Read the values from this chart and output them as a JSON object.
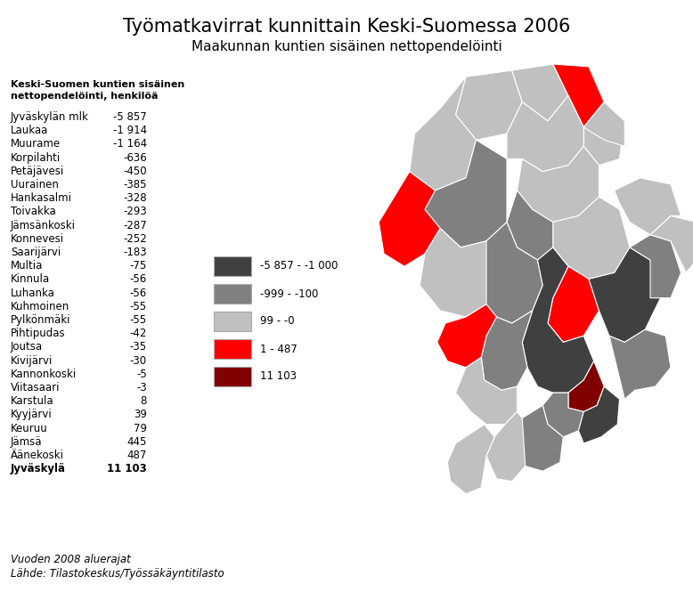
{
  "title": "Työmatkavirrat kunnittain Keski-Suomessa 2006",
  "subtitle": "Maakunnan kuntien sisäinen nettopendelöinti",
  "legend_title": "Keski-Suomen kuntien sisäinen\nnettopendelöinti, henkilöä",
  "footer1": "Vuoden 2008 aluerajat",
  "footer2": "Lähde: Tilastokeskus/Työssäkäyntitilasto",
  "municipalities": [
    [
      "Jyväskylän mlk",
      "-5 857"
    ],
    [
      "Laukaa",
      "-1 914"
    ],
    [
      "Muurame",
      "-1 164"
    ],
    [
      "Korpilahti",
      "-636"
    ],
    [
      "Petäjävesi",
      "-450"
    ],
    [
      "Uurainen",
      "-385"
    ],
    [
      "Hankasalmi",
      "-328"
    ],
    [
      "Toivakka",
      "-293"
    ],
    [
      "Jämsänkoski",
      "-287"
    ],
    [
      "Konnevesi",
      "-252"
    ],
    [
      "Saarijärvi",
      "-183"
    ],
    [
      "Multia",
      "-75"
    ],
    [
      "Kinnula",
      "-56"
    ],
    [
      "Luhanka",
      "-56"
    ],
    [
      "Kuhmoinen",
      "-55"
    ],
    [
      "Pylkönmäki",
      "-55"
    ],
    [
      "Pihtipudas",
      "-42"
    ],
    [
      "Joutsa",
      "-35"
    ],
    [
      "Kivijärvi",
      "-30"
    ],
    [
      "Kannonkoski",
      "-5"
    ],
    [
      "Viitasaari",
      "-3"
    ],
    [
      "Karstula",
      "8"
    ],
    [
      "Kyyjärvi",
      "39"
    ],
    [
      "Keuruu",
      "79"
    ],
    [
      "Jämsä",
      "445"
    ],
    [
      "Äänekoski",
      "487"
    ],
    [
      "Jyväskylä",
      "11 103"
    ]
  ],
  "legend_items": [
    {
      "color": "#404040",
      "label": "-5 857 - -1 000"
    },
    {
      "color": "#808080",
      "label": "-999 - -100"
    },
    {
      "color": "#c0c0c0",
      "label": "99 - -0"
    },
    {
      "color": "#ff0000",
      "label": "1 - 487"
    },
    {
      "color": "#800000",
      "label": "11 103"
    }
  ],
  "background_color": "#ffffff",
  "title_fontsize": 15,
  "subtitle_fontsize": 11,
  "text_fontsize": 8.5,
  "legend_title_fontsize": 8,
  "footer_fontsize": 8.5,
  "map_polys": [
    [
      "#c0c0c0",
      [
        [
          100,
          10
        ],
        [
          145,
          5
        ],
        [
          155,
          30
        ],
        [
          140,
          55
        ],
        [
          110,
          60
        ],
        [
          90,
          40
        ]
      ]
    ],
    [
      "#c0c0c0",
      [
        [
          145,
          5
        ],
        [
          185,
          0
        ],
        [
          200,
          25
        ],
        [
          180,
          45
        ],
        [
          155,
          30
        ]
      ]
    ],
    [
      "#ff0000",
      [
        [
          185,
          0
        ],
        [
          220,
          2
        ],
        [
          235,
          30
        ],
        [
          215,
          50
        ],
        [
          200,
          25
        ]
      ]
    ],
    [
      "#c0c0c0",
      [
        [
          100,
          10
        ],
        [
          90,
          40
        ],
        [
          110,
          60
        ],
        [
          100,
          90
        ],
        [
          70,
          100
        ],
        [
          45,
          85
        ],
        [
          50,
          55
        ],
        [
          75,
          35
        ]
      ]
    ],
    [
      "#c0c0c0",
      [
        [
          215,
          50
        ],
        [
          235,
          30
        ],
        [
          255,
          45
        ],
        [
          250,
          75
        ],
        [
          230,
          80
        ],
        [
          215,
          65
        ]
      ]
    ],
    [
      "#c0c0c0",
      [
        [
          140,
          55
        ],
        [
          155,
          30
        ],
        [
          180,
          45
        ],
        [
          200,
          25
        ],
        [
          215,
          50
        ],
        [
          215,
          65
        ],
        [
          200,
          80
        ],
        [
          175,
          85
        ],
        [
          155,
          75
        ],
        [
          140,
          75
        ]
      ]
    ],
    [
      "#c0c0c0",
      [
        [
          155,
          75
        ],
        [
          175,
          85
        ],
        [
          200,
          80
        ],
        [
          215,
          65
        ],
        [
          230,
          80
        ],
        [
          230,
          105
        ],
        [
          210,
          120
        ],
        [
          185,
          125
        ],
        [
          165,
          115
        ],
        [
          150,
          100
        ]
      ]
    ],
    [
      "#c0c0c0",
      [
        [
          185,
          125
        ],
        [
          210,
          120
        ],
        [
          230,
          105
        ],
        [
          250,
          115
        ],
        [
          260,
          145
        ],
        [
          245,
          165
        ],
        [
          220,
          170
        ],
        [
          200,
          160
        ],
        [
          185,
          145
        ]
      ]
    ],
    [
      "#808080",
      [
        [
          150,
          100
        ],
        [
          165,
          115
        ],
        [
          185,
          125
        ],
        [
          185,
          145
        ],
        [
          170,
          155
        ],
        [
          150,
          145
        ],
        [
          140,
          125
        ]
      ]
    ],
    [
      "#808080",
      [
        [
          70,
          100
        ],
        [
          100,
          90
        ],
        [
          110,
          60
        ],
        [
          140,
          75
        ],
        [
          140,
          125
        ],
        [
          120,
          140
        ],
        [
          95,
          145
        ],
        [
          75,
          130
        ],
        [
          60,
          115
        ]
      ]
    ],
    [
      "#ff0000",
      [
        [
          200,
          160
        ],
        [
          220,
          170
        ],
        [
          230,
          195
        ],
        [
          215,
          215
        ],
        [
          195,
          220
        ],
        [
          180,
          205
        ],
        [
          185,
          185
        ]
      ]
    ],
    [
      "#ff0000",
      [
        [
          45,
          85
        ],
        [
          70,
          100
        ],
        [
          60,
          115
        ],
        [
          75,
          130
        ],
        [
          60,
          150
        ],
        [
          40,
          160
        ],
        [
          20,
          150
        ],
        [
          15,
          125
        ],
        [
          30,
          105
        ]
      ]
    ],
    [
      "#c0c0c0",
      [
        [
          75,
          130
        ],
        [
          95,
          145
        ],
        [
          120,
          140
        ],
        [
          130,
          165
        ],
        [
          120,
          190
        ],
        [
          100,
          200
        ],
        [
          75,
          195
        ],
        [
          55,
          175
        ],
        [
          60,
          150
        ]
      ]
    ],
    [
      "#808080",
      [
        [
          120,
          140
        ],
        [
          140,
          125
        ],
        [
          150,
          145
        ],
        [
          170,
          155
        ],
        [
          175,
          175
        ],
        [
          165,
          195
        ],
        [
          145,
          205
        ],
        [
          130,
          200
        ],
        [
          120,
          190
        ]
      ]
    ],
    [
      "#404040",
      [
        [
          170,
          155
        ],
        [
          185,
          145
        ],
        [
          200,
          160
        ],
        [
          185,
          185
        ],
        [
          180,
          205
        ],
        [
          195,
          220
        ],
        [
          215,
          215
        ],
        [
          225,
          235
        ],
        [
          215,
          250
        ],
        [
          200,
          260
        ],
        [
          185,
          260
        ],
        [
          170,
          255
        ],
        [
          160,
          240
        ],
        [
          155,
          220
        ],
        [
          165,
          195
        ],
        [
          175,
          175
        ]
      ]
    ],
    [
      "#800000",
      [
        [
          200,
          260
        ],
        [
          215,
          250
        ],
        [
          225,
          235
        ],
        [
          235,
          255
        ],
        [
          228,
          270
        ],
        [
          215,
          275
        ],
        [
          200,
          272
        ]
      ]
    ],
    [
      "#404040",
      [
        [
          245,
          165
        ],
        [
          260,
          145
        ],
        [
          280,
          155
        ],
        [
          290,
          185
        ],
        [
          275,
          210
        ],
        [
          255,
          220
        ],
        [
          240,
          215
        ],
        [
          230,
          195
        ],
        [
          220,
          170
        ],
        [
          245,
          165
        ]
      ]
    ],
    [
      "#808080",
      [
        [
          185,
          260
        ],
        [
          200,
          260
        ],
        [
          200,
          272
        ],
        [
          215,
          275
        ],
        [
          210,
          290
        ],
        [
          195,
          295
        ],
        [
          180,
          285
        ],
        [
          175,
          270
        ]
      ]
    ],
    [
      "#404040",
      [
        [
          215,
          275
        ],
        [
          228,
          270
        ],
        [
          235,
          255
        ],
        [
          250,
          265
        ],
        [
          248,
          285
        ],
        [
          232,
          295
        ],
        [
          215,
          300
        ],
        [
          210,
          290
        ]
      ]
    ],
    [
      "#808080",
      [
        [
          130,
          200
        ],
        [
          145,
          205
        ],
        [
          165,
          195
        ],
        [
          155,
          220
        ],
        [
          160,
          240
        ],
        [
          150,
          255
        ],
        [
          135,
          258
        ],
        [
          118,
          250
        ],
        [
          115,
          232
        ],
        [
          120,
          215
        ]
      ]
    ],
    [
      "#808080",
      [
        [
          175,
          270
        ],
        [
          180,
          285
        ],
        [
          195,
          295
        ],
        [
          192,
          315
        ],
        [
          175,
          322
        ],
        [
          158,
          318
        ],
        [
          150,
          300
        ],
        [
          155,
          280
        ]
      ]
    ],
    [
      "#ff0000",
      [
        [
          100,
          200
        ],
        [
          120,
          190
        ],
        [
          130,
          200
        ],
        [
          120,
          215
        ],
        [
          115,
          232
        ],
        [
          100,
          240
        ],
        [
          82,
          235
        ],
        [
          72,
          220
        ],
        [
          80,
          205
        ]
      ]
    ],
    [
      "#c0c0c0",
      [
        [
          100,
          240
        ],
        [
          115,
          232
        ],
        [
          118,
          250
        ],
        [
          135,
          258
        ],
        [
          150,
          255
        ],
        [
          150,
          275
        ],
        [
          138,
          285
        ],
        [
          120,
          285
        ],
        [
          105,
          275
        ],
        [
          90,
          260
        ]
      ]
    ],
    [
      "#c0c0c0",
      [
        [
          138,
          285
        ],
        [
          150,
          275
        ],
        [
          155,
          280
        ],
        [
          158,
          318
        ],
        [
          145,
          330
        ],
        [
          130,
          328
        ],
        [
          120,
          310
        ],
        [
          128,
          295
        ]
      ]
    ],
    [
      "#c0c0c0",
      [
        [
          118,
          285
        ],
        [
          128,
          295
        ],
        [
          120,
          310
        ],
        [
          115,
          335
        ],
        [
          100,
          340
        ],
        [
          85,
          330
        ],
        [
          82,
          315
        ],
        [
          90,
          300
        ]
      ]
    ],
    [
      "#808080",
      [
        [
          255,
          220
        ],
        [
          275,
          210
        ],
        [
          295,
          215
        ],
        [
          300,
          240
        ],
        [
          285,
          255
        ],
        [
          265,
          258
        ],
        [
          255,
          265
        ],
        [
          240,
          215
        ]
      ]
    ],
    [
      "#808080",
      [
        [
          260,
          145
        ],
        [
          280,
          135
        ],
        [
          300,
          140
        ],
        [
          310,
          165
        ],
        [
          300,
          185
        ],
        [
          280,
          185
        ],
        [
          280,
          155
        ]
      ]
    ],
    [
      "#c0c0c0",
      [
        [
          280,
          135
        ],
        [
          300,
          120
        ],
        [
          325,
          125
        ],
        [
          330,
          150
        ],
        [
          315,
          165
        ],
        [
          300,
          140
        ]
      ]
    ],
    [
      "#c0c0c0",
      [
        [
          245,
          100
        ],
        [
          270,
          90
        ],
        [
          300,
          95
        ],
        [
          310,
          120
        ],
        [
          300,
          120
        ],
        [
          280,
          135
        ],
        [
          260,
          125
        ],
        [
          250,
          110
        ]
      ]
    ],
    [
      "#c0c0c0",
      [
        [
          215,
          50
        ],
        [
          235,
          60
        ],
        [
          255,
          65
        ],
        [
          255,
          45
        ],
        [
          235,
          30
        ]
      ]
    ]
  ]
}
